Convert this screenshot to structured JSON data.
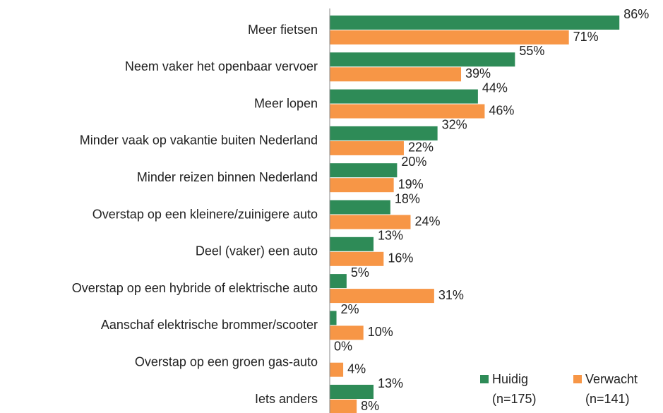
{
  "chart_data": {
    "type": "bar",
    "orientation": "horizontal",
    "categories": [
      "Meer fietsen",
      "Neem vaker het openbaar vervoer",
      "Meer lopen",
      "Minder vaak op vakantie buiten Nederland",
      "Minder reizen binnen Nederland",
      "Overstap op een kleinere/zuinigere auto",
      "Deel (vaker) een auto",
      "Overstap op een hybride of elektrische auto",
      "Aanschaf elektrische brommer/scooter",
      "Overstap op een groen gas-auto",
      "Iets anders"
    ],
    "series": [
      {
        "name": "Huidig",
        "sample": "(n=175)",
        "color": "#2e8b57",
        "values": [
          86,
          55,
          44,
          32,
          20,
          18,
          13,
          5,
          2,
          0,
          13
        ],
        "value_labels": [
          "86%",
          "55%",
          "44%",
          "32%",
          "20%",
          "18%",
          "13%",
          "5%",
          "2%",
          "0%",
          "13%"
        ]
      },
      {
        "name": "Verwacht",
        "sample": "(n=141)",
        "color": "#f79646",
        "values": [
          71,
          39,
          46,
          22,
          19,
          24,
          16,
          31,
          10,
          4,
          8
        ],
        "value_labels": [
          "71%",
          "39%",
          "46%",
          "22%",
          "19%",
          "24%",
          "16%",
          "31%",
          "10%",
          "4%",
          "8%"
        ]
      }
    ],
    "legend": "bottom-right"
  }
}
